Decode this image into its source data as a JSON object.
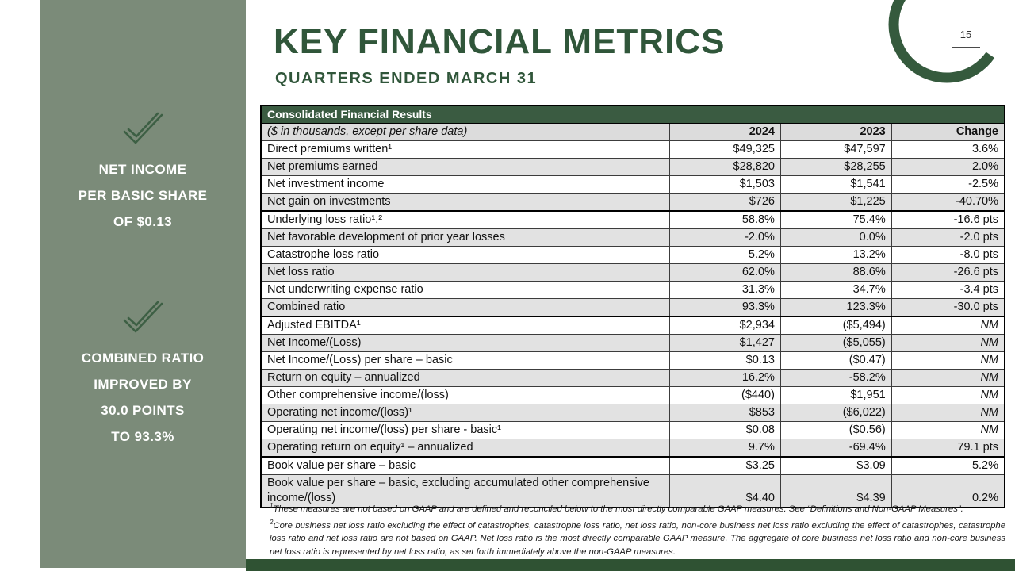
{
  "page": {
    "number": "15"
  },
  "header": {
    "title": "KEY FINANCIAL METRICS",
    "subtitle": "QUARTERS ENDED MARCH 31"
  },
  "sidebar": {
    "callouts": [
      {
        "icon": "double-checkmark",
        "lines": [
          "NET INCOME",
          "PER BASIC SHARE",
          "OF $0.13"
        ]
      },
      {
        "icon": "double-checkmark",
        "lines": [
          "COMBINED RATIO",
          "IMPROVED BY",
          "30.0 POINTS",
          "TO 93.3%"
        ]
      }
    ]
  },
  "table": {
    "title": "Consolidated Financial Results",
    "subtitle": "($ in thousands, except per share data)",
    "columns": [
      "2024",
      "2023",
      "Change"
    ],
    "rows": [
      {
        "label": "Direct premiums written¹",
        "v2024": "$49,325",
        "v2023": "$47,597",
        "change": "3.6%"
      },
      {
        "label": "Net premiums earned",
        "v2024": "$28,820",
        "v2023": "$28,255",
        "change": "2.0%"
      },
      {
        "label": "Net investment income",
        "v2024": "$1,503",
        "v2023": "$1,541",
        "change": "-2.5%"
      },
      {
        "label": "Net gain on investments",
        "v2024": "$726",
        "v2023": "$1,225",
        "change": "-40.70%",
        "groupEnd": true
      },
      {
        "label": "Underlying loss ratio¹,²",
        "v2024": "58.8%",
        "v2023": "75.4%",
        "change": "-16.6 pts"
      },
      {
        "label": "Net favorable development of prior year losses",
        "v2024": "-2.0%",
        "v2023": "0.0%",
        "change": "-2.0 pts"
      },
      {
        "label": "Catastrophe loss ratio",
        "v2024": "5.2%",
        "v2023": "13.2%",
        "change": "-8.0 pts"
      },
      {
        "label": "Net loss ratio",
        "v2024": "62.0%",
        "v2023": "88.6%",
        "change": "-26.6 pts"
      },
      {
        "label": "Net underwriting expense ratio",
        "v2024": "31.3%",
        "v2023": "34.7%",
        "change": "-3.4 pts"
      },
      {
        "label": "Combined ratio",
        "v2024": "93.3%",
        "v2023": "123.3%",
        "change": "-30.0 pts",
        "groupEnd": true
      },
      {
        "label": "Adjusted EBITDA¹",
        "v2024": "$2,934",
        "v2023": "($5,494)",
        "change": "NM"
      },
      {
        "label": "Net Income/(Loss)",
        "v2024": "$1,427",
        "v2023": "($5,055)",
        "change": "NM"
      },
      {
        "label": "Net Income/(Loss) per share – basic",
        "v2024": "$0.13",
        "v2023": "($0.47)",
        "change": "NM"
      },
      {
        "label": "Return on equity – annualized",
        "v2024": "16.2%",
        "v2023": "-58.2%",
        "change": "NM"
      },
      {
        "label": "Other comprehensive income/(loss)",
        "v2024": "($440)",
        "v2023": "$1,951",
        "change": "NM"
      },
      {
        "label": "Operating net income/(loss)¹",
        "v2024": "$853",
        "v2023": "($6,022)",
        "change": "NM"
      },
      {
        "label": "Operating net income/(loss) per share - basic¹",
        "v2024": "$0.08",
        "v2023": "($0.56)",
        "change": "NM"
      },
      {
        "label": "Operating return on equity¹ – annualized",
        "v2024": "9.7%",
        "v2023": "-69.4%",
        "change": "79.1 pts",
        "groupEnd": true
      },
      {
        "label": "Book value per share – basic",
        "v2024": "$3.25",
        "v2023": "$3.09",
        "change": "5.2%"
      },
      {
        "label": "Book value per share – basic, excluding accumulated other comprehensive income/(loss)",
        "v2024": "$4.40",
        "v2023": "$4.39",
        "change": "0.2%"
      }
    ]
  },
  "footnotes": [
    {
      "sup": "1",
      "text": "These measures are not based on GAAP and are defined and reconciled below to the most directly comparable GAAP measures. See “Definitions and Non-GAAP Measures”."
    },
    {
      "sup": "2",
      "text": "Core business net loss ratio excluding the effect of catastrophes, catastrophe loss ratio, net loss ratio, non-core business net loss ratio excluding the effect of catastrophes, catastrophe loss ratio and net loss ratio are not based on GAAP.  Net loss ratio is the most directly comparable GAAP measure.  The aggregate of core business net loss ratio and non-core business net loss ratio is represented by net loss ratio, as set forth immediately above the non-GAAP measures."
    }
  ],
  "colors": {
    "dark_green": "#30563a",
    "table_header_green": "#3a5b41",
    "sidebar_green": "#7b8b79",
    "footer_green": "#2f5233",
    "row_alt": "#e2e2e2"
  }
}
